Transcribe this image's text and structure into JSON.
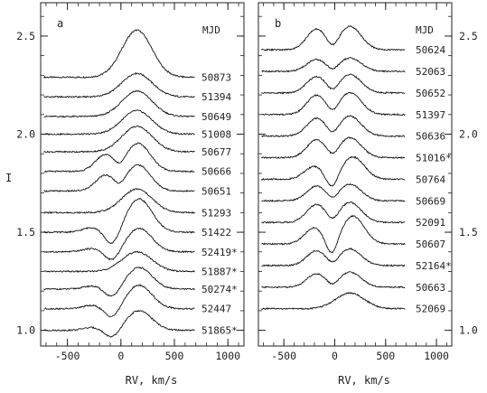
{
  "chart_data": [
    {
      "type": "line",
      "panel": "a",
      "header": "MJD",
      "xlabel": "RV, km/s",
      "ylabel": "I",
      "xlim": [
        -750,
        1150
      ],
      "ylim": [
        0.92,
        2.67
      ],
      "xticks": [
        "-500",
        "0",
        "500",
        "1000"
      ],
      "yticks": [
        "1.0",
        "1.5",
        "2.0",
        "2.5"
      ],
      "series": [
        {
          "name": "50873",
          "offset": 2.29,
          "amp": 0.24,
          "shape": "single"
        },
        {
          "name": "51394",
          "offset": 2.19,
          "amp": 0.12,
          "shape": "single"
        },
        {
          "name": "50649",
          "offset": 2.09,
          "amp": 0.13,
          "shape": "single"
        },
        {
          "name": "51008",
          "offset": 2.0,
          "amp": 0.12,
          "shape": "single"
        },
        {
          "name": "50677",
          "offset": 1.91,
          "amp": 0.13,
          "shape": "single"
        },
        {
          "name": "50666",
          "offset": 1.81,
          "amp": 0.15,
          "shape": "double_red"
        },
        {
          "name": "50651",
          "offset": 1.71,
          "amp": 0.14,
          "shape": "double_red"
        },
        {
          "name": "51293",
          "offset": 1.6,
          "amp": 0.12,
          "shape": "single"
        },
        {
          "name": "51422",
          "offset": 1.5,
          "amp": 0.17,
          "shape": "absorb_blue"
        },
        {
          "name": "52419*",
          "offset": 1.4,
          "amp": 0.12,
          "shape": "absorb_blue"
        },
        {
          "name": "51887*",
          "offset": 1.3,
          "amp": 0.1,
          "shape": "single"
        },
        {
          "name": "50274*",
          "offset": 1.21,
          "amp": 0.11,
          "shape": "absorb_blue"
        },
        {
          "name": "52447",
          "offset": 1.11,
          "amp": 0.12,
          "shape": "absorb_blue"
        },
        {
          "name": "51865*",
          "offset": 1.0,
          "amp": 0.1,
          "shape": "absorb_blue"
        }
      ]
    },
    {
      "type": "line",
      "panel": "b",
      "header": "MJD",
      "xlabel": "RV, km/s",
      "ylabel": "",
      "xlim": [
        -750,
        1150
      ],
      "ylim": [
        0.92,
        2.67
      ],
      "xticks": [
        "-500",
        "0",
        "500",
        "1000"
      ],
      "yticks": [
        "1.0",
        "1.5",
        "2.0",
        "2.5"
      ],
      "series": [
        {
          "name": "50624",
          "offset": 2.43,
          "amp": 0.14,
          "shape": "double"
        },
        {
          "name": "52063",
          "offset": 2.32,
          "amp": 0.08,
          "shape": "double"
        },
        {
          "name": "50652",
          "offset": 2.21,
          "amp": 0.11,
          "shape": "double"
        },
        {
          "name": "51397",
          "offset": 2.1,
          "amp": 0.13,
          "shape": "double"
        },
        {
          "name": "50636",
          "offset": 1.99,
          "amp": 0.12,
          "shape": "double"
        },
        {
          "name": "51016*",
          "offset": 1.88,
          "amp": 0.12,
          "shape": "double"
        },
        {
          "name": "50764",
          "offset": 1.77,
          "amp": 0.12,
          "shape": "double_absorb"
        },
        {
          "name": "50669",
          "offset": 1.66,
          "amp": 0.1,
          "shape": "double"
        },
        {
          "name": "52091",
          "offset": 1.55,
          "amp": 0.12,
          "shape": "double"
        },
        {
          "name": "50607",
          "offset": 1.44,
          "amp": 0.15,
          "shape": "double_absorb"
        },
        {
          "name": "52164*",
          "offset": 1.33,
          "amp": 0.1,
          "shape": "double"
        },
        {
          "name": "50663",
          "offset": 1.22,
          "amp": 0.09,
          "shape": "double"
        },
        {
          "name": "52069",
          "offset": 1.11,
          "amp": 0.08,
          "shape": "single"
        }
      ]
    }
  ]
}
